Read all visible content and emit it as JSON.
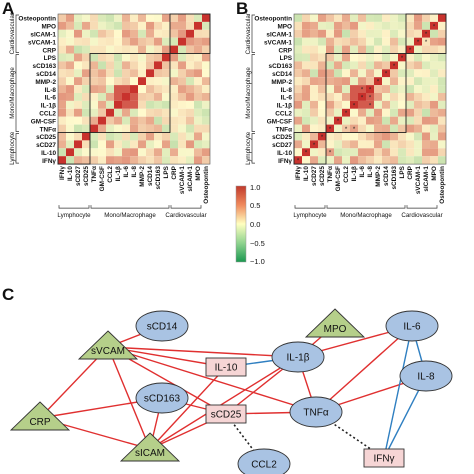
{
  "panel_labels": {
    "a": "A",
    "b": "B",
    "c": "C"
  },
  "heatmap_rows": [
    "Osteopontin",
    "MPO",
    "sICAM-1",
    "sVCAM-1",
    "CRP",
    "LPS",
    "sCD163",
    "sCD14",
    "MMP-2",
    "IL-8",
    "IL-6",
    "IL-1β",
    "CCL2",
    "GM-CSF",
    "TNFα",
    "sCD25",
    "sCD27",
    "IL-10",
    "IFNγ"
  ],
  "heatmap_cols": [
    "IFNγ",
    "IL-10",
    "sCD27",
    "sCD25",
    "TNFα",
    "GM-CSF",
    "CCL2",
    "IL-1β",
    "IL-6",
    "IL-8",
    "MMP-2",
    "sCD14",
    "sCD163",
    "LPS",
    "CRP",
    "sVCAM-1",
    "sICAM-1",
    "MPO",
    "Osteopontin"
  ],
  "row_groups": [
    "Cardiovascular",
    "Mono/Macrophage",
    "Lymphocyte"
  ],
  "col_groups": [
    "Lymphocyte",
    "Mono/Macrophage",
    "Cardiovascular"
  ],
  "colorbar": {
    "ticks": [
      "1.0",
      "0.5",
      "0.0",
      "−0.5",
      "−1.0"
    ],
    "colors": {
      "high": "#c0392b",
      "mid": "#ffffc0",
      "low": "#1a9850"
    }
  },
  "network": {
    "nodes": [
      {
        "id": "sCD14",
        "label": "sCD14",
        "shape": "ellipse"
      },
      {
        "id": "MPO",
        "label": "MPO",
        "shape": "triangle"
      },
      {
        "id": "IL6",
        "label": "IL-6",
        "shape": "ellipse"
      },
      {
        "id": "sVCAM",
        "label": "sVCAM",
        "shape": "triangle"
      },
      {
        "id": "IL10",
        "label": "IL-10",
        "shape": "rect"
      },
      {
        "id": "IL1b",
        "label": "IL-1β",
        "shape": "ellipse"
      },
      {
        "id": "IL8",
        "label": "IL-8",
        "shape": "ellipse"
      },
      {
        "id": "CRP",
        "label": "CRP",
        "shape": "triangle"
      },
      {
        "id": "sCD163",
        "label": "sCD163",
        "shape": "ellipse"
      },
      {
        "id": "sCD25",
        "label": "sCD25",
        "shape": "rect"
      },
      {
        "id": "TNFa",
        "label": "TNFα",
        "shape": "ellipse"
      },
      {
        "id": "sICAM",
        "label": "sICAM",
        "shape": "triangle"
      },
      {
        "id": "CCL2",
        "label": "CCL2",
        "shape": "ellipse"
      },
      {
        "id": "IFNg",
        "label": "IFNγ",
        "shape": "rect"
      }
    ],
    "edges": [
      {
        "from": "sVCAM",
        "to": "sCD14",
        "type": "positive"
      },
      {
        "from": "sVCAM",
        "to": "IL10",
        "type": "positive"
      },
      {
        "from": "sVCAM",
        "to": "IL1b",
        "type": "positive"
      },
      {
        "from": "sVCAM",
        "to": "sCD25",
        "type": "positive"
      },
      {
        "from": "sVCAM",
        "to": "TNFa",
        "type": "positive"
      },
      {
        "from": "sVCAM",
        "to": "CRP",
        "type": "positive"
      },
      {
        "from": "sVCAM",
        "to": "sICAM",
        "type": "positive"
      },
      {
        "from": "CRP",
        "to": "sCD163",
        "type": "positive"
      },
      {
        "from": "CRP",
        "to": "sICAM",
        "type": "positive"
      },
      {
        "from": "sCD163",
        "to": "sCD25",
        "type": "positive"
      },
      {
        "from": "sCD163",
        "to": "sICAM",
        "type": "positive"
      },
      {
        "from": "sICAM",
        "to": "sCD25",
        "type": "positive"
      },
      {
        "from": "sICAM",
        "to": "IL10",
        "type": "positive"
      },
      {
        "from": "sICAM",
        "to": "IL1b",
        "type": "positive"
      },
      {
        "from": "sCD25",
        "to": "TNFa",
        "type": "positive"
      },
      {
        "from": "sCD25",
        "to": "IL1b",
        "type": "positive"
      },
      {
        "from": "IL10",
        "to": "IL1b",
        "type": "negative"
      },
      {
        "from": "IL1b",
        "to": "MPO",
        "type": "positive"
      },
      {
        "from": "IL1b",
        "to": "TNFa",
        "type": "positive"
      },
      {
        "from": "TNFa",
        "to": "IL6",
        "type": "positive"
      },
      {
        "from": "TNFa",
        "to": "IL8",
        "type": "positive"
      },
      {
        "from": "IL1b",
        "to": "IL6",
        "type": "positive"
      },
      {
        "from": "IL6",
        "to": "IL8",
        "type": "negative"
      },
      {
        "from": "IL6",
        "to": "IFNg",
        "type": "negative"
      },
      {
        "from": "IL8",
        "to": "IFNg",
        "type": "negative"
      },
      {
        "from": "TNFa",
        "to": "IFNg",
        "type": "dotted"
      },
      {
        "from": "sCD25",
        "to": "CCL2",
        "type": "dotted"
      }
    ],
    "colors": {
      "positive": "#e03030",
      "negative": "#2f7fc1",
      "dotted": "#222222",
      "ellipse_fill": "#a9c3e3",
      "triangle_fill": "#b5cf8a",
      "rect_fill": "#f6d5d5"
    }
  }
}
